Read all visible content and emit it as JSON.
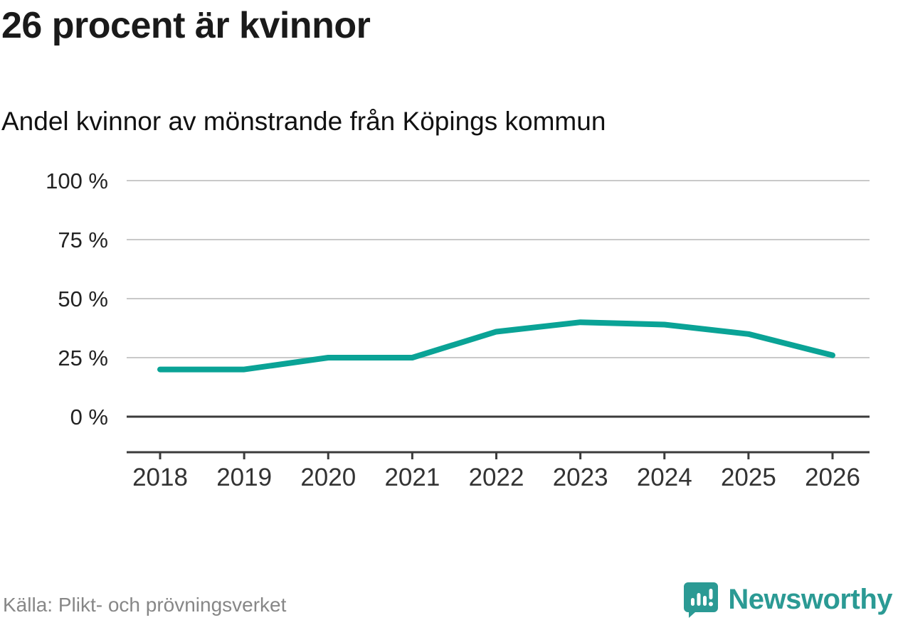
{
  "title": "26 procent är kvinnor",
  "subtitle": "Andel kvinnor av mönstrande från Köpings kommun",
  "source": "Källa: Plikt- och prövningsverket",
  "logo": {
    "text": "Newsworthy",
    "icon": "bar-chart-speech-bubble-icon",
    "color": "#2b9a94"
  },
  "chart_data": {
    "type": "line",
    "title": "26 procent är kvinnor",
    "subtitle": "Andel kvinnor av mönstrande från Köpings kommun",
    "categories": [
      "2018",
      "2019",
      "2020",
      "2021",
      "2022",
      "2023",
      "2024",
      "2025",
      "2026"
    ],
    "values": [
      20,
      20,
      25,
      25,
      36,
      40,
      39,
      35,
      26
    ],
    "series_name": "Andel kvinnor av mönstrande",
    "xlabel": "",
    "ylabel": "",
    "ylim": [
      0,
      100
    ],
    "yticks": [
      0,
      25,
      50,
      75,
      100
    ],
    "ytick_suffix": " %",
    "grid": "horizontal",
    "legend": "none",
    "line_color": "#0aa396",
    "grid_color": "#c9c9c9",
    "axis_color": "#3b3b3b"
  }
}
